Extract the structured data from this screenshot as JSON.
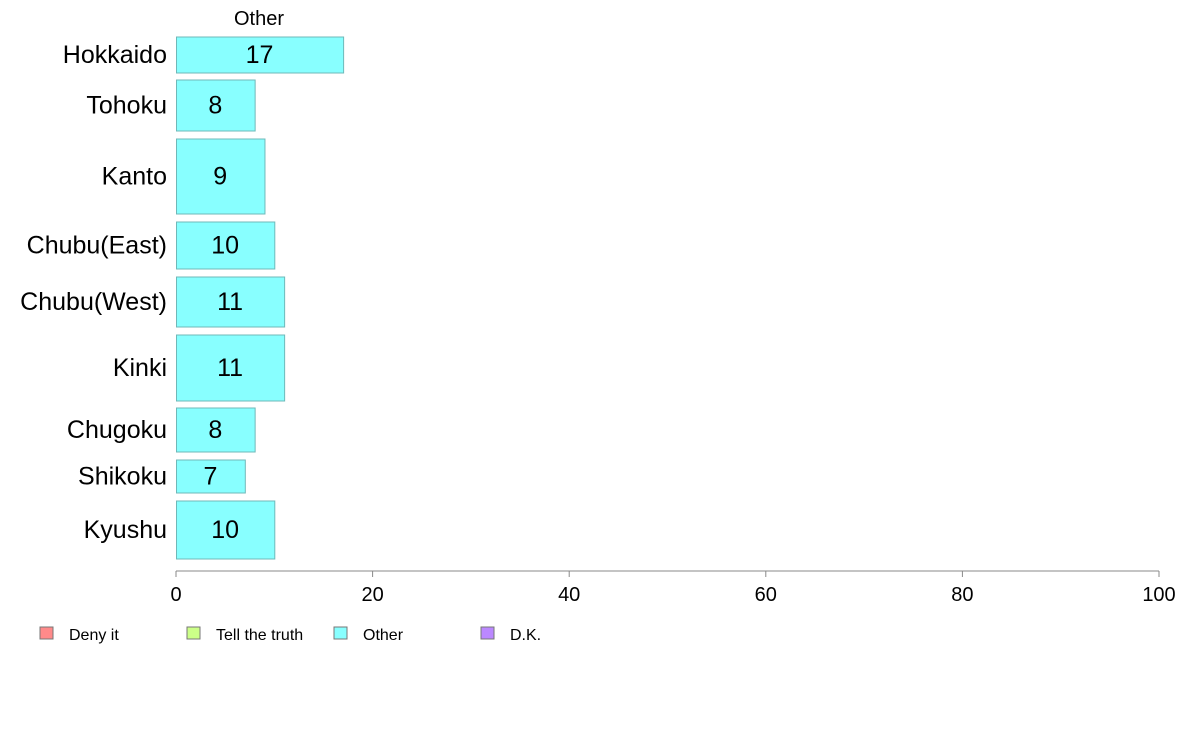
{
  "chart_data": {
    "type": "bar",
    "orientation": "horizontal",
    "series_title": "Other",
    "categories": [
      "Hokkaido",
      "Tohoku",
      "Kanto",
      "Chubu(East)",
      "Chubu(West)",
      "Kinki",
      "Chugoku",
      "Shikoku",
      "Kyushu"
    ],
    "values": [
      17,
      8,
      9,
      10,
      11,
      11,
      8,
      7,
      10
    ],
    "bar_color": "#88ffff",
    "xlim": [
      0,
      100
    ],
    "xticks": [
      0,
      20,
      40,
      60,
      80,
      100
    ],
    "grid": false,
    "legend_position": "bottom-left",
    "legend": [
      {
        "label": "Deny it",
        "color": "#ff8a8a"
      },
      {
        "label": "Tell the truth",
        "color": "#ccff88"
      },
      {
        "label": "Other",
        "color": "#88ffff"
      },
      {
        "label": "D.K.",
        "color": "#bb88ff"
      }
    ]
  }
}
